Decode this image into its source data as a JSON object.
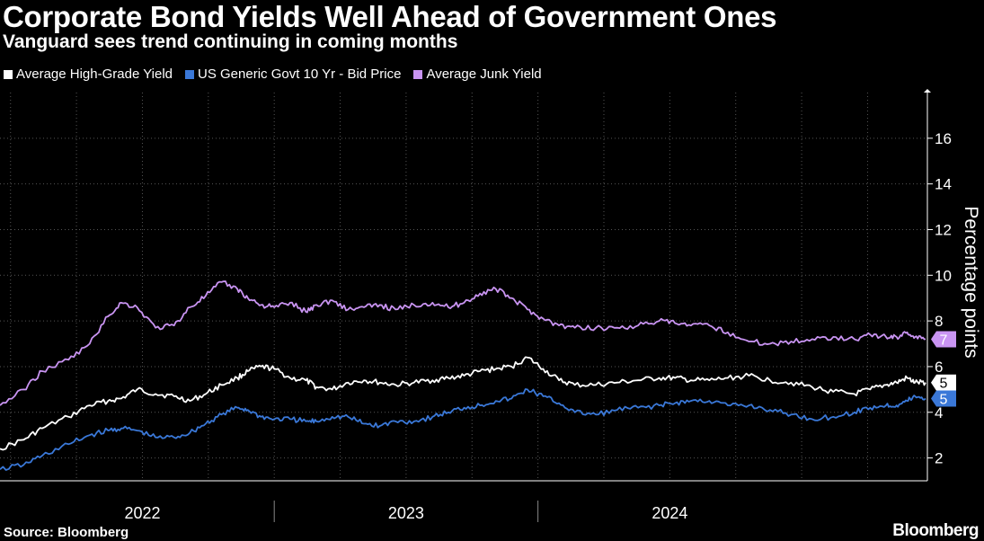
{
  "chart_data": {
    "type": "line",
    "title": "Corporate Bond Yields Well Ahead of Government Ones",
    "subtitle": "Vanguard sees trend continuing in coming months",
    "ylabel": "Percentage points",
    "xlabel": "",
    "ylim": [
      1,
      18
    ],
    "yticks": [
      2,
      4,
      6,
      8,
      10,
      12,
      14,
      16
    ],
    "xlim": [
      2021.46,
      2024.97
    ],
    "year_labels": [
      {
        "label": "2022",
        "x": 2022.0
      },
      {
        "label": "2023",
        "x": 2023.0
      },
      {
        "label": "2024",
        "x": 2024.0
      }
    ],
    "year_boundaries": [
      2022.5,
      2023.5
    ],
    "grid": true,
    "legend_position": "top-left",
    "series": [
      {
        "name": "Average High-Grade Yield",
        "color": "#ffffff",
        "last_label": "5",
        "x": [
          2021.46,
          2021.55,
          2021.62,
          2021.72,
          2021.8,
          2021.87,
          2021.92,
          2021.98,
          2022.05,
          2022.12,
          2022.18,
          2022.24,
          2022.3,
          2022.36,
          2022.4,
          2022.45,
          2022.5,
          2022.56,
          2022.62,
          2022.66,
          2022.72,
          2022.78,
          2022.84,
          2022.9,
          2022.96,
          2023.03,
          2023.1,
          2023.16,
          2023.22,
          2023.28,
          2023.34,
          2023.4,
          2023.46,
          2023.52,
          2023.58,
          2023.64,
          2023.72,
          2023.8,
          2023.88,
          2023.96,
          2024.02,
          2024.08,
          2024.15,
          2024.22,
          2024.3,
          2024.38,
          2024.46,
          2024.54,
          2024.62,
          2024.7,
          2024.76,
          2024.82,
          2024.86,
          2024.9,
          2024.93,
          2024.97
        ],
        "y": [
          2.4,
          2.8,
          3.3,
          3.8,
          4.3,
          4.5,
          4.6,
          5.0,
          4.8,
          4.7,
          4.5,
          4.8,
          5.2,
          5.5,
          5.8,
          6.0,
          5.9,
          5.5,
          5.4,
          5.1,
          5.0,
          5.3,
          5.4,
          5.3,
          5.2,
          5.3,
          5.4,
          5.5,
          5.6,
          5.8,
          5.9,
          6.0,
          6.4,
          5.9,
          5.4,
          5.2,
          5.2,
          5.3,
          5.4,
          5.5,
          5.5,
          5.4,
          5.4,
          5.5,
          5.6,
          5.4,
          5.3,
          5.1,
          4.9,
          4.8,
          5.0,
          5.2,
          5.3,
          5.5,
          5.3,
          5.3
        ]
      },
      {
        "name": "US Generic Govt 10 Yr - Bid Price",
        "color": "#3a78d8",
        "last_label": "5",
        "x": [
          2021.46,
          2021.55,
          2021.62,
          2021.72,
          2021.8,
          2021.87,
          2021.92,
          2021.98,
          2022.05,
          2022.12,
          2022.18,
          2022.24,
          2022.3,
          2022.36,
          2022.4,
          2022.45,
          2022.5,
          2022.56,
          2022.62,
          2022.66,
          2022.72,
          2022.78,
          2022.84,
          2022.9,
          2022.96,
          2023.03,
          2023.1,
          2023.16,
          2023.22,
          2023.28,
          2023.34,
          2023.4,
          2023.46,
          2023.52,
          2023.58,
          2023.64,
          2023.72,
          2023.8,
          2023.88,
          2023.96,
          2024.02,
          2024.08,
          2024.15,
          2024.22,
          2024.3,
          2024.38,
          2024.46,
          2024.54,
          2024.62,
          2024.7,
          2024.76,
          2024.82,
          2024.86,
          2024.9,
          2024.93,
          2024.97
        ],
        "y": [
          1.5,
          1.7,
          2.1,
          2.6,
          3.0,
          3.2,
          3.3,
          3.2,
          2.9,
          2.9,
          3.1,
          3.5,
          3.9,
          4.2,
          4.1,
          3.8,
          3.7,
          3.7,
          3.6,
          3.6,
          3.8,
          3.8,
          3.5,
          3.4,
          3.6,
          3.6,
          3.8,
          4.0,
          4.2,
          4.3,
          4.5,
          4.6,
          5.0,
          4.7,
          4.4,
          4.0,
          3.9,
          4.1,
          4.2,
          4.3,
          4.4,
          4.5,
          4.5,
          4.3,
          4.3,
          4.1,
          3.9,
          3.7,
          3.8,
          4.0,
          4.2,
          4.3,
          4.3,
          4.5,
          4.7,
          4.6
        ]
      },
      {
        "name": "Average Junk Yield",
        "color": "#c994f2",
        "last_label": "7",
        "x": [
          2021.46,
          2021.55,
          2021.62,
          2021.72,
          2021.8,
          2021.87,
          2021.92,
          2021.98,
          2022.05,
          2022.12,
          2022.18,
          2022.24,
          2022.3,
          2022.36,
          2022.4,
          2022.45,
          2022.5,
          2022.56,
          2022.62,
          2022.66,
          2022.72,
          2022.78,
          2022.84,
          2022.9,
          2022.96,
          2023.03,
          2023.1,
          2023.16,
          2023.22,
          2023.28,
          2023.34,
          2023.4,
          2023.46,
          2023.52,
          2023.58,
          2023.64,
          2023.72,
          2023.8,
          2023.88,
          2023.96,
          2024.02,
          2024.08,
          2024.15,
          2024.22,
          2024.3,
          2024.38,
          2024.46,
          2024.54,
          2024.62,
          2024.7,
          2024.76,
          2024.82,
          2024.86,
          2024.9,
          2024.93,
          2024.97
        ],
        "y": [
          4.3,
          5.0,
          5.8,
          6.3,
          7.0,
          8.2,
          8.8,
          8.6,
          7.7,
          7.8,
          8.6,
          9.1,
          9.7,
          9.4,
          9.0,
          8.7,
          8.6,
          8.8,
          8.4,
          8.7,
          8.9,
          8.5,
          8.6,
          8.7,
          8.5,
          8.7,
          8.8,
          8.6,
          8.8,
          9.2,
          9.4,
          9.0,
          8.5,
          8.1,
          7.8,
          7.7,
          7.7,
          7.7,
          7.8,
          8.0,
          7.9,
          7.8,
          7.8,
          7.5,
          7.1,
          7.0,
          7.1,
          7.2,
          7.3,
          7.2,
          7.4,
          7.3,
          7.3,
          7.5,
          7.3,
          7.2
        ]
      }
    ]
  },
  "footer": {
    "source": "Source: Bloomberg",
    "brand": "Bloomberg"
  }
}
